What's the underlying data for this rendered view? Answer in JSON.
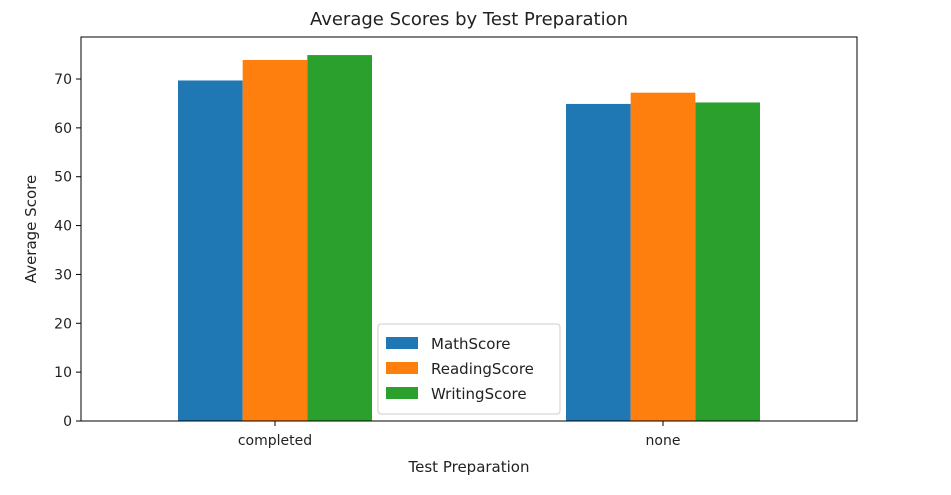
{
  "chart_data": {
    "type": "bar",
    "title": "Average Scores by Test Preparation",
    "xlabel": "Test Preparation",
    "ylabel": "Average Score",
    "categories": [
      "completed",
      "none"
    ],
    "series": [
      {
        "name": "MathScore",
        "values": [
          69.7,
          64.9
        ],
        "color": "#1f77b4"
      },
      {
        "name": "ReadingScore",
        "values": [
          73.9,
          67.2
        ],
        "color": "#ff7f0e"
      },
      {
        "name": "WritingScore",
        "values": [
          74.9,
          65.2
        ],
        "color": "#2ca02c"
      }
    ],
    "ylim": [
      0,
      78.6
    ],
    "yticks": [
      0,
      10,
      20,
      30,
      40,
      50,
      60,
      70
    ],
    "grid": false,
    "legend_position": "lower-center"
  }
}
